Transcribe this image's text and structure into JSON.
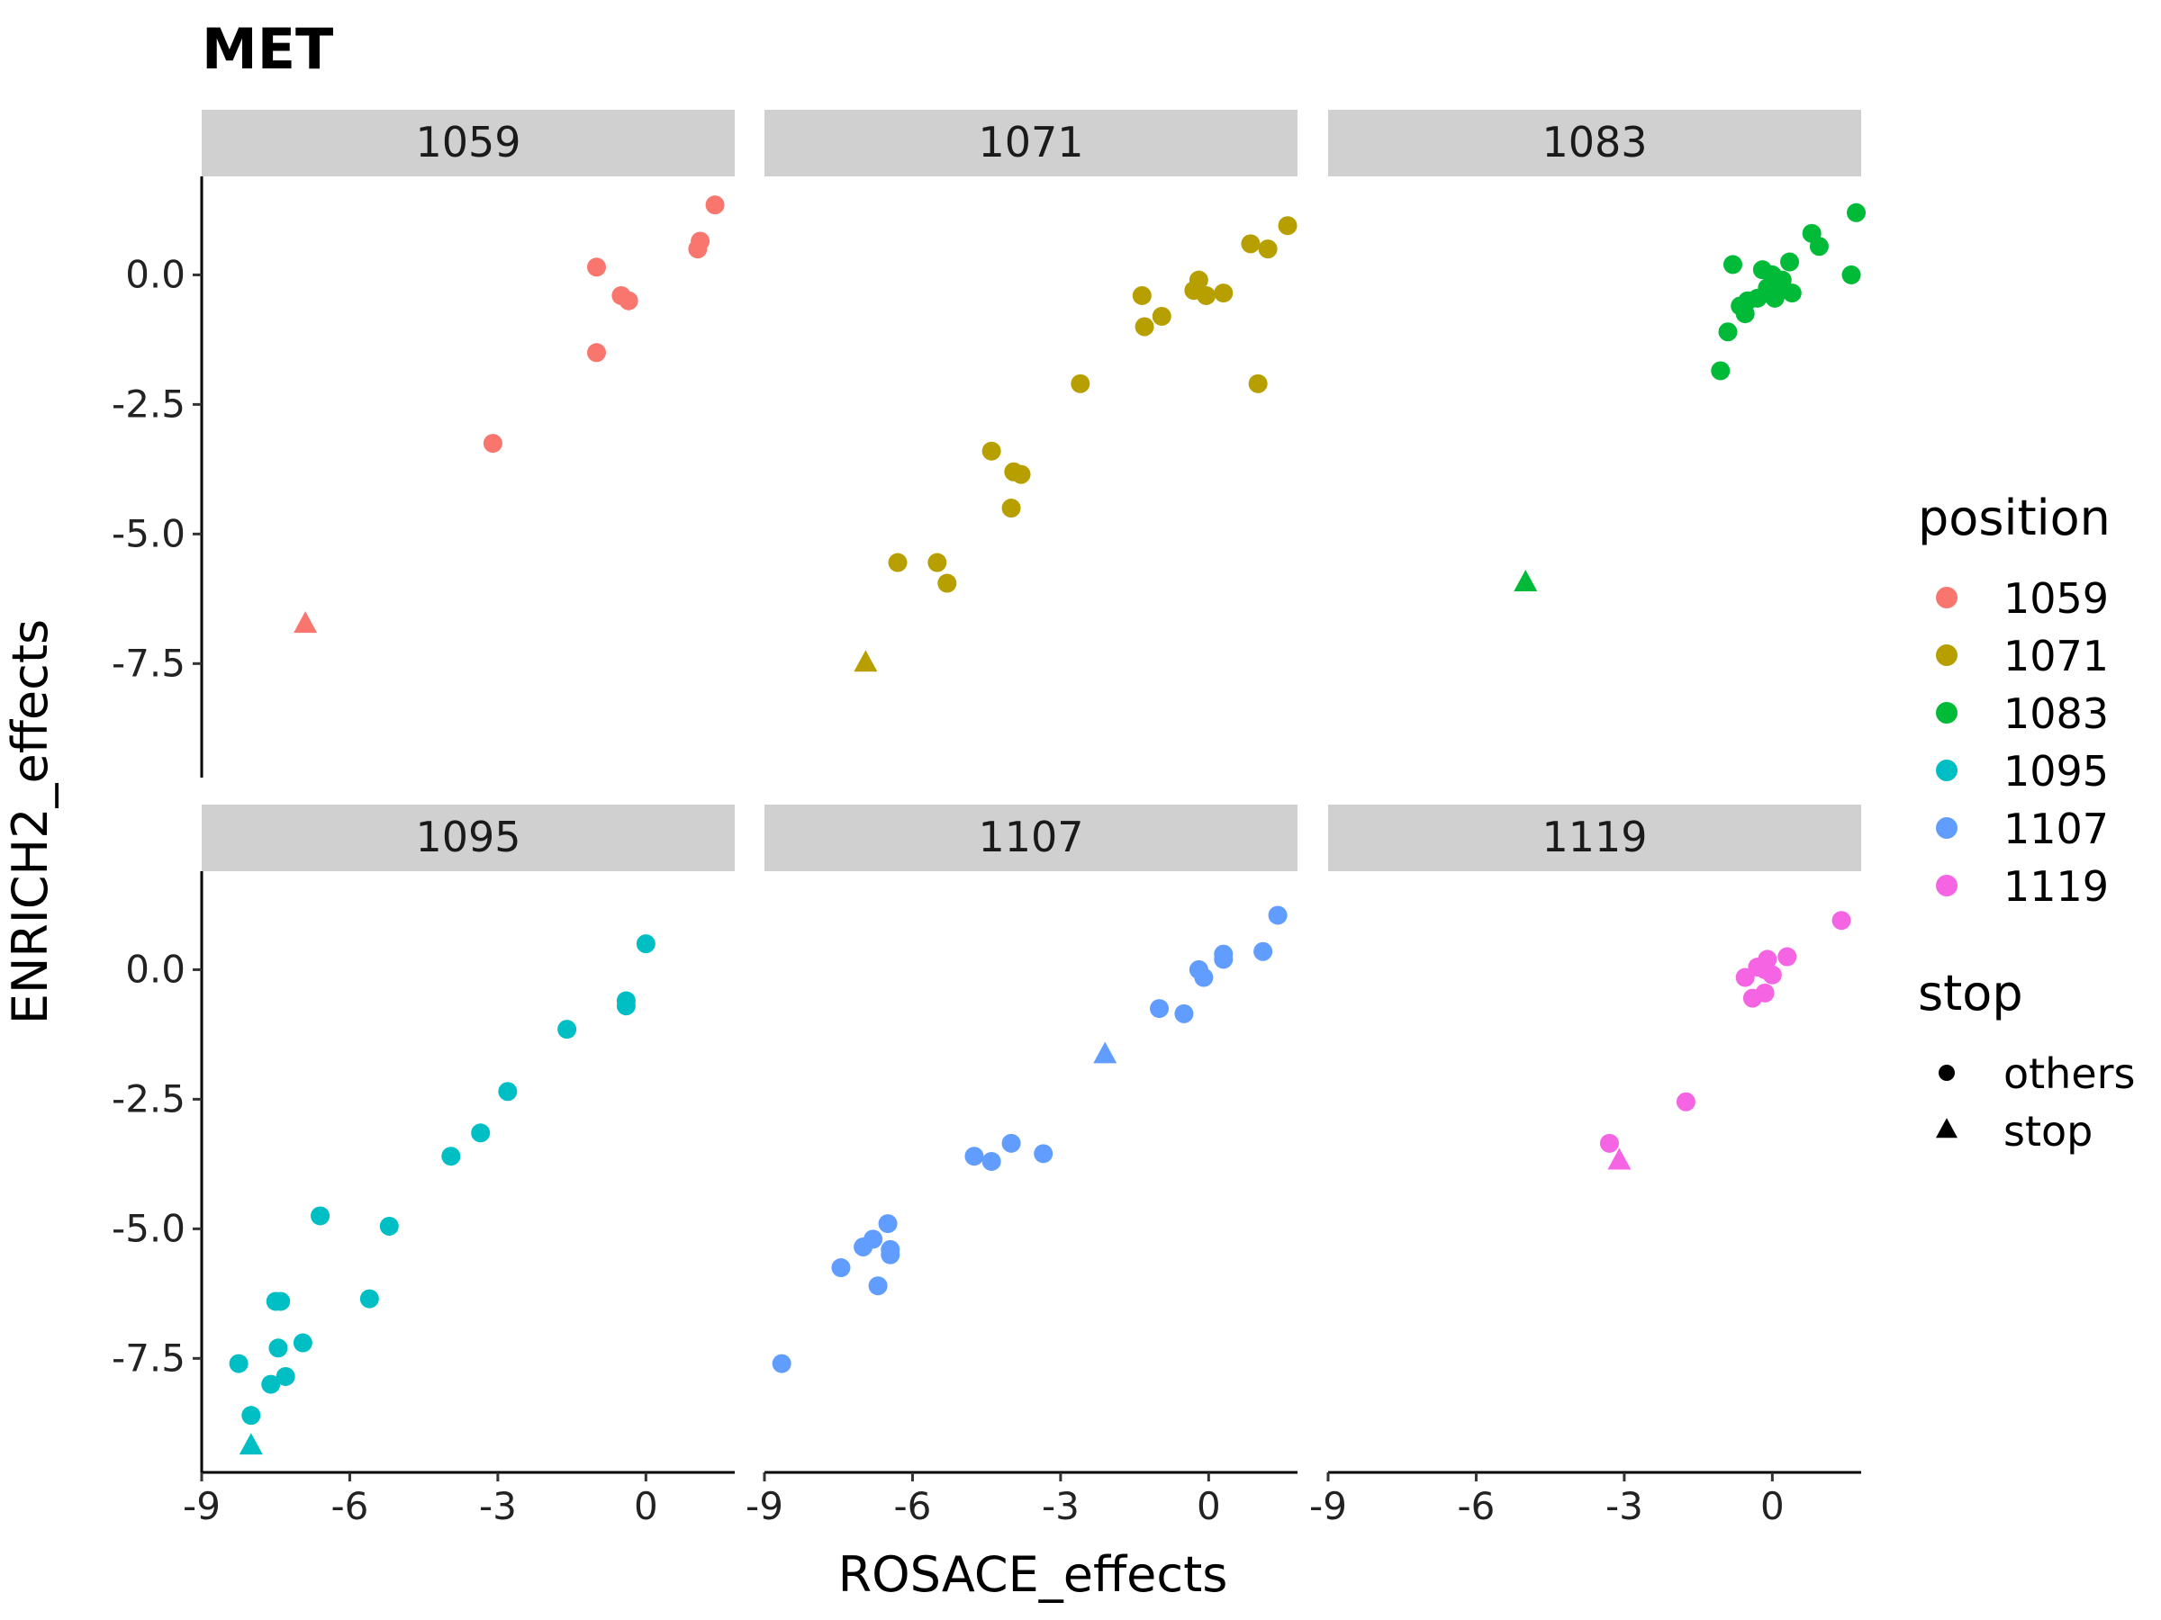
{
  "chart_data": {
    "type": "scatter",
    "title": "MET",
    "xlabel": "ROSACE_effects",
    "ylabel": "ENRICH2_effects",
    "xlim": [
      -9,
      1.8
    ],
    "ylim": [
      -9.7,
      1.9
    ],
    "x_ticks": [
      -9,
      -6,
      -3,
      0
    ],
    "x_tick_labels": [
      "-9",
      "-6",
      "-3",
      "0"
    ],
    "y_ticks": [
      0,
      -2.5,
      -5,
      -7.5
    ],
    "y_tick_labels": [
      "0.0",
      "-2.5",
      "-5.0",
      "-7.5"
    ],
    "grid": false,
    "legend_placement": "right",
    "legend": {
      "color_title": "position",
      "color_entries": [
        {
          "label": "1059",
          "color": "#F8766D"
        },
        {
          "label": "1071",
          "color": "#B79F00"
        },
        {
          "label": "1083",
          "color": "#00BA38"
        },
        {
          "label": "1095",
          "color": "#00BFC4"
        },
        {
          "label": "1107",
          "color": "#619CFF"
        },
        {
          "label": "1119",
          "color": "#F564E3"
        }
      ],
      "shape_title": "stop",
      "shape_entries": [
        {
          "label": "others",
          "shape": "circle"
        },
        {
          "label": "stop",
          "shape": "triangle"
        }
      ]
    },
    "panels": [
      {
        "label": "1059",
        "color": "#F8766D",
        "points": [
          {
            "x": 1.4,
            "y": 1.35,
            "stop": "others"
          },
          {
            "x": 1.1,
            "y": 0.65,
            "stop": "others"
          },
          {
            "x": 1.05,
            "y": 0.5,
            "stop": "others"
          },
          {
            "x": -1.0,
            "y": 0.15,
            "stop": "others"
          },
          {
            "x": -0.5,
            "y": -0.4,
            "stop": "others"
          },
          {
            "x": -0.35,
            "y": -0.5,
            "stop": "others"
          },
          {
            "x": -1.0,
            "y": -1.5,
            "stop": "others"
          },
          {
            "x": -3.1,
            "y": -3.25,
            "stop": "others"
          },
          {
            "x": -6.9,
            "y": -6.75,
            "stop": "stop"
          }
        ]
      },
      {
        "label": "1071",
        "color": "#B79F00",
        "points": [
          {
            "x": 1.6,
            "y": 0.95,
            "stop": "others"
          },
          {
            "x": 0.85,
            "y": 0.6,
            "stop": "others"
          },
          {
            "x": 1.2,
            "y": 0.5,
            "stop": "others"
          },
          {
            "x": -1.35,
            "y": -0.4,
            "stop": "others"
          },
          {
            "x": -0.2,
            "y": -0.1,
            "stop": "others"
          },
          {
            "x": -0.3,
            "y": -0.3,
            "stop": "others"
          },
          {
            "x": -0.05,
            "y": -0.4,
            "stop": "others"
          },
          {
            "x": 0.3,
            "y": -0.35,
            "stop": "others"
          },
          {
            "x": -0.95,
            "y": -0.8,
            "stop": "others"
          },
          {
            "x": -1.3,
            "y": -1.0,
            "stop": "others"
          },
          {
            "x": -2.6,
            "y": -2.1,
            "stop": "others"
          },
          {
            "x": 1.0,
            "y": -2.1,
            "stop": "others"
          },
          {
            "x": -4.4,
            "y": -3.4,
            "stop": "others"
          },
          {
            "x": -3.95,
            "y": -3.8,
            "stop": "others"
          },
          {
            "x": -3.8,
            "y": -3.85,
            "stop": "others"
          },
          {
            "x": -4.0,
            "y": -4.5,
            "stop": "others"
          },
          {
            "x": -6.3,
            "y": -5.55,
            "stop": "others"
          },
          {
            "x": -5.5,
            "y": -5.55,
            "stop": "others"
          },
          {
            "x": -5.3,
            "y": -5.95,
            "stop": "others"
          },
          {
            "x": -6.95,
            "y": -7.5,
            "stop": "stop"
          }
        ]
      },
      {
        "label": "1083",
        "color": "#00BA38",
        "points": [
          {
            "x": 1.7,
            "y": 1.2,
            "stop": "others"
          },
          {
            "x": 0.8,
            "y": 0.8,
            "stop": "others"
          },
          {
            "x": 0.95,
            "y": 0.55,
            "stop": "others"
          },
          {
            "x": 1.6,
            "y": 0.0,
            "stop": "others"
          },
          {
            "x": 0.35,
            "y": 0.25,
            "stop": "others"
          },
          {
            "x": -0.8,
            "y": 0.2,
            "stop": "others"
          },
          {
            "x": -0.2,
            "y": 0.1,
            "stop": "others"
          },
          {
            "x": 0.0,
            "y": 0.0,
            "stop": "others"
          },
          {
            "x": 0.2,
            "y": -0.1,
            "stop": "others"
          },
          {
            "x": -0.1,
            "y": -0.25,
            "stop": "others"
          },
          {
            "x": 0.1,
            "y": -0.35,
            "stop": "others"
          },
          {
            "x": 0.4,
            "y": -0.35,
            "stop": "others"
          },
          {
            "x": -0.3,
            "y": -0.45,
            "stop": "others"
          },
          {
            "x": 0.05,
            "y": -0.45,
            "stop": "others"
          },
          {
            "x": -0.5,
            "y": -0.5,
            "stop": "others"
          },
          {
            "x": -0.65,
            "y": -0.6,
            "stop": "others"
          },
          {
            "x": -0.55,
            "y": -0.75,
            "stop": "others"
          },
          {
            "x": -0.9,
            "y": -1.1,
            "stop": "others"
          },
          {
            "x": -1.05,
            "y": -1.85,
            "stop": "others"
          },
          {
            "x": -5.0,
            "y": -5.95,
            "stop": "stop"
          }
        ]
      },
      {
        "label": "1095",
        "color": "#00BFC4",
        "points": [
          {
            "x": 0.0,
            "y": 0.5,
            "stop": "others"
          },
          {
            "x": -0.4,
            "y": -0.6,
            "stop": "others"
          },
          {
            "x": -0.4,
            "y": -0.7,
            "stop": "others"
          },
          {
            "x": -1.6,
            "y": -1.15,
            "stop": "others"
          },
          {
            "x": -2.8,
            "y": -2.35,
            "stop": "others"
          },
          {
            "x": -3.35,
            "y": -3.15,
            "stop": "others"
          },
          {
            "x": -3.95,
            "y": -3.6,
            "stop": "others"
          },
          {
            "x": -6.6,
            "y": -4.75,
            "stop": "others"
          },
          {
            "x": -5.2,
            "y": -4.95,
            "stop": "others"
          },
          {
            "x": -5.6,
            "y": -6.35,
            "stop": "others"
          },
          {
            "x": -7.5,
            "y": -6.4,
            "stop": "others"
          },
          {
            "x": -7.4,
            "y": -6.4,
            "stop": "others"
          },
          {
            "x": -7.45,
            "y": -7.3,
            "stop": "others"
          },
          {
            "x": -6.95,
            "y": -7.2,
            "stop": "others"
          },
          {
            "x": -8.25,
            "y": -7.6,
            "stop": "others"
          },
          {
            "x": -7.3,
            "y": -7.85,
            "stop": "others"
          },
          {
            "x": -7.6,
            "y": -8.0,
            "stop": "others"
          },
          {
            "x": -8.0,
            "y": -8.6,
            "stop": "others"
          },
          {
            "x": -8.0,
            "y": -9.2,
            "stop": "stop"
          }
        ]
      },
      {
        "label": "1107",
        "color": "#619CFF",
        "points": [
          {
            "x": 1.4,
            "y": 1.05,
            "stop": "others"
          },
          {
            "x": 1.1,
            "y": 0.35,
            "stop": "others"
          },
          {
            "x": 0.3,
            "y": 0.3,
            "stop": "others"
          },
          {
            "x": 0.3,
            "y": 0.2,
            "stop": "others"
          },
          {
            "x": -0.2,
            "y": 0.0,
            "stop": "others"
          },
          {
            "x": -0.1,
            "y": -0.15,
            "stop": "others"
          },
          {
            "x": -1.0,
            "y": -0.75,
            "stop": "others"
          },
          {
            "x": -0.5,
            "y": -0.85,
            "stop": "others"
          },
          {
            "x": -2.1,
            "y": -1.65,
            "stop": "stop"
          },
          {
            "x": -4.0,
            "y": -3.35,
            "stop": "others"
          },
          {
            "x": -3.35,
            "y": -3.55,
            "stop": "others"
          },
          {
            "x": -4.75,
            "y": -3.6,
            "stop": "others"
          },
          {
            "x": -4.4,
            "y": -3.7,
            "stop": "others"
          },
          {
            "x": -6.5,
            "y": -4.9,
            "stop": "others"
          },
          {
            "x": -6.8,
            "y": -5.2,
            "stop": "others"
          },
          {
            "x": -7.0,
            "y": -5.35,
            "stop": "others"
          },
          {
            "x": -6.45,
            "y": -5.4,
            "stop": "others"
          },
          {
            "x": -6.45,
            "y": -5.5,
            "stop": "others"
          },
          {
            "x": -7.45,
            "y": -5.75,
            "stop": "others"
          },
          {
            "x": -6.7,
            "y": -6.1,
            "stop": "others"
          },
          {
            "x": -8.65,
            "y": -7.6,
            "stop": "others"
          }
        ]
      },
      {
        "label": "1119",
        "color": "#F564E3",
        "points": [
          {
            "x": 1.4,
            "y": 0.95,
            "stop": "others"
          },
          {
            "x": 0.3,
            "y": 0.25,
            "stop": "others"
          },
          {
            "x": -0.1,
            "y": 0.2,
            "stop": "others"
          },
          {
            "x": -0.3,
            "y": 0.05,
            "stop": "others"
          },
          {
            "x": -0.15,
            "y": 0.0,
            "stop": "others"
          },
          {
            "x": 0.0,
            "y": -0.1,
            "stop": "others"
          },
          {
            "x": -0.55,
            "y": -0.15,
            "stop": "others"
          },
          {
            "x": -0.15,
            "y": -0.45,
            "stop": "others"
          },
          {
            "x": -0.4,
            "y": -0.55,
            "stop": "others"
          },
          {
            "x": -1.75,
            "y": -2.55,
            "stop": "others"
          },
          {
            "x": -3.3,
            "y": -3.35,
            "stop": "others"
          },
          {
            "x": -3.1,
            "y": -3.7,
            "stop": "stop"
          }
        ]
      }
    ]
  }
}
